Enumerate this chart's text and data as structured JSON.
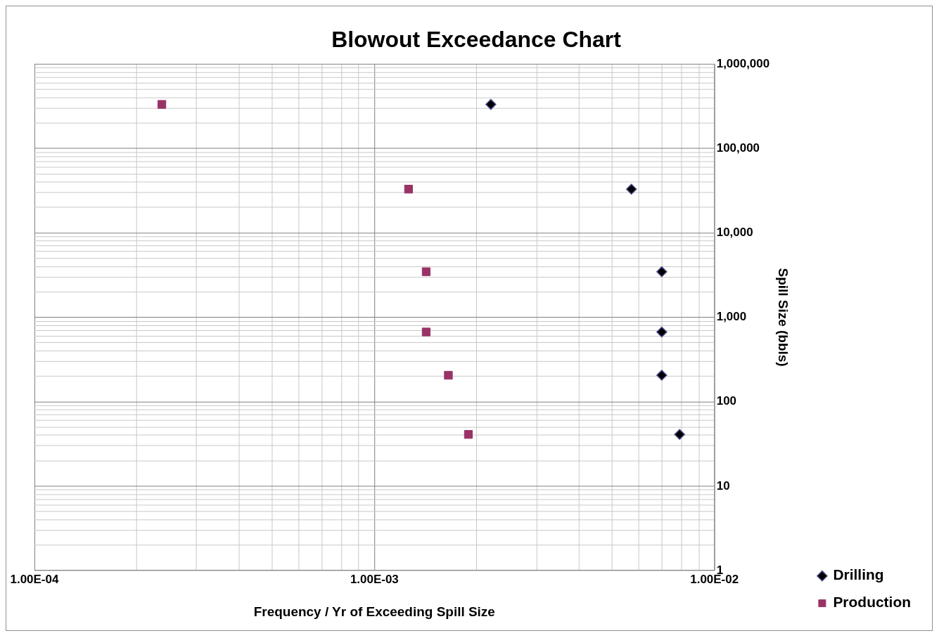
{
  "chart_data": {
    "type": "scatter",
    "title": "Blowout Exceedance Chart",
    "xlabel": "Frequency / Yr of Exceeding Spill Size",
    "ylabel": "Spill Size (bbls)",
    "log": "xy",
    "grid": true,
    "legend": "right",
    "xlim": [
      0.0001,
      0.01
    ],
    "xticks": [
      {
        "value": 0.0001,
        "label": "1.00E-04"
      },
      {
        "value": 0.0002,
        "label": null
      },
      {
        "value": 0.0003,
        "label": null
      },
      {
        "value": 0.0004,
        "label": null
      },
      {
        "value": 0.0005,
        "label": null
      },
      {
        "value": 0.0006,
        "label": null
      },
      {
        "value": 0.0007,
        "label": null
      },
      {
        "value": 0.0008,
        "label": null
      },
      {
        "value": 0.0009,
        "label": null
      },
      {
        "value": 0.001,
        "label": "1.00E-03"
      },
      {
        "value": 0.002,
        "label": null
      },
      {
        "value": 0.003,
        "label": null
      },
      {
        "value": 0.004,
        "label": null
      },
      {
        "value": 0.005,
        "label": null
      },
      {
        "value": 0.006,
        "label": null
      },
      {
        "value": 0.007,
        "label": null
      },
      {
        "value": 0.008,
        "label": null
      },
      {
        "value": 0.009,
        "label": null
      },
      {
        "value": 0.01,
        "label": "1.00E-02"
      }
    ],
    "ylim": [
      1,
      1000000
    ],
    "yticks": [
      1,
      {
        "value": 2,
        "label": null
      },
      {
        "value": 3,
        "label": null
      },
      {
        "value": 4,
        "label": null
      },
      {
        "value": 5,
        "label": null
      },
      {
        "value": 6,
        "label": null
      },
      {
        "value": 7,
        "label": null
      },
      {
        "value": 8,
        "label": null
      },
      {
        "value": 9,
        "label": null
      },
      10,
      {
        "value": 20,
        "label": null
      },
      {
        "value": 30,
        "label": null
      },
      {
        "value": 40,
        "label": null
      },
      {
        "value": 50,
        "label": null
      },
      {
        "value": 60,
        "label": null
      },
      {
        "value": 70,
        "label": null
      },
      {
        "value": 80,
        "label": null
      },
      {
        "value": 90,
        "label": null
      },
      100,
      {
        "value": 200,
        "label": null
      },
      {
        "value": 300,
        "label": null
      },
      {
        "value": 400,
        "label": null
      },
      {
        "value": 500,
        "label": null
      },
      {
        "value": 600,
        "label": null
      },
      {
        "value": 700,
        "label": null
      },
      {
        "value": 800,
        "label": null
      },
      {
        "value": 900,
        "label": null
      },
      {
        "value": 1000,
        "label": "1,000"
      },
      {
        "value": 2000,
        "label": null
      },
      {
        "value": 3000,
        "label": null
      },
      {
        "value": 4000,
        "label": null
      },
      {
        "value": 5000,
        "label": null
      },
      {
        "value": 6000,
        "label": null
      },
      {
        "value": 7000,
        "label": null
      },
      {
        "value": 8000,
        "label": null
      },
      {
        "value": 9000,
        "label": null
      },
      {
        "value": 10000,
        "label": "10,000"
      },
      {
        "value": 20000,
        "label": null
      },
      {
        "value": 30000,
        "label": null
      },
      {
        "value": 40000,
        "label": null
      },
      {
        "value": 50000,
        "label": null
      },
      {
        "value": 60000,
        "label": null
      },
      {
        "value": 70000,
        "label": null
      },
      {
        "value": 80000,
        "label": null
      },
      {
        "value": 90000,
        "label": null
      },
      {
        "value": 100000,
        "label": "100,000"
      },
      {
        "value": 200000,
        "label": null
      },
      {
        "value": 300000,
        "label": null
      },
      {
        "value": 400000,
        "label": null
      },
      {
        "value": 500000,
        "label": null
      },
      {
        "value": 600000,
        "label": null
      },
      {
        "value": 700000,
        "label": null
      },
      {
        "value": 800000,
        "label": null
      },
      {
        "value": 900000,
        "label": null
      },
      {
        "value": 1000000,
        "label": "1,000,000"
      }
    ],
    "series": [
      {
        "name": "Drilling",
        "color": "#000000",
        "marker": "diamond",
        "x": [
          0.0022,
          0.0057,
          0.007,
          0.007,
          0.007,
          0.0079
        ],
        "values": [
          333000,
          33000,
          3470,
          670,
          206,
          41
        ]
      },
      {
        "name": "Production",
        "color": "#993366",
        "marker": "square",
        "x": [
          0.000237,
          0.00126,
          0.00142,
          0.00142,
          0.00165,
          0.00189
        ],
        "values": [
          333000,
          33000,
          3470,
          670,
          206,
          41
        ]
      }
    ]
  }
}
